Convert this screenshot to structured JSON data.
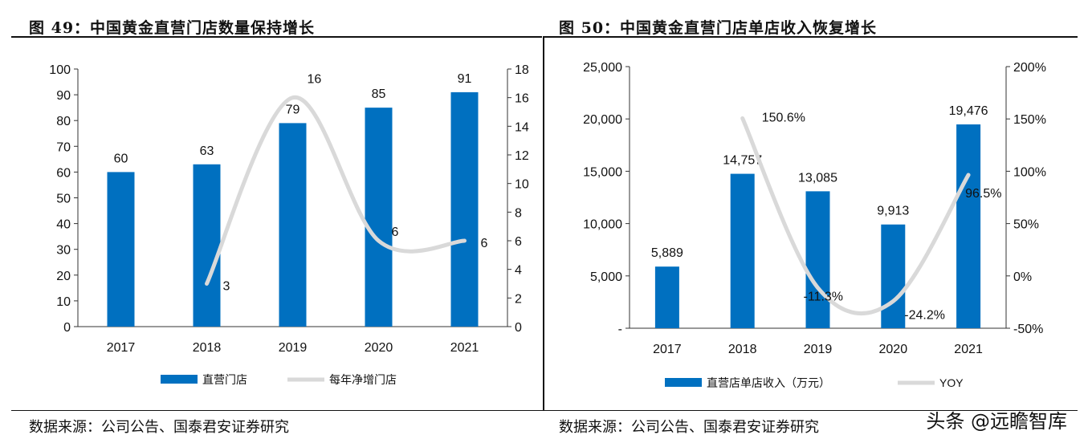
{
  "panels": [
    {
      "title": "图 49：中国黄金直营门店数量保持增长",
      "source": "数据来源：公司公告、国泰君安证券研究"
    },
    {
      "title": "图 50：中国黄金直营门店单店收入恢复增长",
      "source": "数据来源：公司公告、国泰君安证券研究"
    }
  ],
  "watermark": "头条 @远瞻智库",
  "colors": {
    "bar": "#0070C0",
    "line": "#D9D9D9"
  },
  "chart_data": [
    {
      "type": "bar",
      "categories": [
        "2017",
        "2018",
        "2019",
        "2020",
        "2021"
      ],
      "series": [
        {
          "name": "直营门店",
          "type": "bar",
          "axis": "left",
          "values": [
            60,
            63,
            79,
            85,
            91
          ]
        },
        {
          "name": "每年净增门店",
          "type": "line",
          "axis": "right",
          "values": [
            null,
            3,
            16,
            6,
            6
          ]
        }
      ],
      "left_axis": {
        "min": 0,
        "max": 100,
        "ticks": [
          "0",
          "10",
          "20",
          "30",
          "40",
          "50",
          "60",
          "70",
          "80",
          "90",
          "100"
        ]
      },
      "right_axis": {
        "min": 0,
        "max": 18,
        "ticks": [
          "0",
          "2",
          "4",
          "6",
          "8",
          "10",
          "12",
          "14",
          "16",
          "18"
        ]
      },
      "bar_labels": [
        "60",
        "63",
        "79",
        "85",
        "91"
      ],
      "line_labels": [
        "",
        "3",
        "16",
        "6",
        "6"
      ],
      "legend_position": "bottom"
    },
    {
      "type": "bar",
      "categories": [
        "2017",
        "2018",
        "2019",
        "2020",
        "2021"
      ],
      "series": [
        {
          "name": "直营店单店收入（万元）",
          "type": "bar",
          "axis": "left",
          "values": [
            5889,
            14757,
            13085,
            9913,
            19476
          ]
        },
        {
          "name": "YOY",
          "type": "line",
          "axis": "right",
          "values": [
            null,
            150.6,
            -11.3,
            -24.2,
            96.5
          ]
        }
      ],
      "left_axis": {
        "min": 0,
        "max": 25000,
        "ticks": [
          "-",
          "5,000",
          "10,000",
          "15,000",
          "20,000",
          "25,000"
        ]
      },
      "right_axis": {
        "min": -50,
        "max": 200,
        "ticks": [
          "-50%",
          "0%",
          "50%",
          "100%",
          "150%",
          "200%"
        ]
      },
      "bar_labels": [
        "5,889",
        "14,757",
        "13,085",
        "9,913",
        "19,476"
      ],
      "line_labels": [
        "",
        "150.6%",
        "-11.3%",
        "-24.2%",
        "96.5%"
      ],
      "legend_position": "bottom"
    }
  ]
}
